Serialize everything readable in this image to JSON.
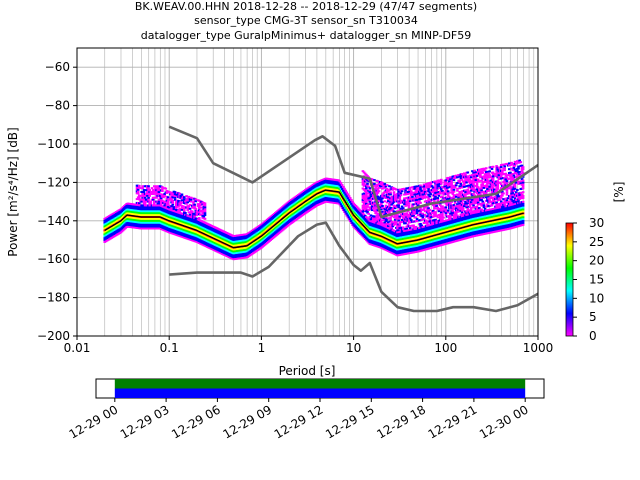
{
  "chart_data": [
    {
      "type": "scatter",
      "title_lines": [
        "BK.WEAV.00.HHN   2018-12-28 -- 2018-12-29  (47/47 segments)",
        "sensor_type CMG-3T sensor_sn T310034",
        "datalogger_type GuralpMinimus+ datalogger_sn MINP-DF59"
      ],
      "xlabel": "Period [s]",
      "ylabel": "Power [m²/s⁴/Hz] [dB]",
      "xscale": "log",
      "xlim": [
        0.01,
        1000
      ],
      "ylim": [
        -200,
        -50
      ],
      "x_ticks": [
        0.01,
        0.1,
        1,
        10,
        100,
        1000
      ],
      "x_tick_labels": [
        "0.01",
        "0.1",
        "1",
        "10",
        "100",
        "1000"
      ],
      "y_ticks": [
        -60,
        -80,
        -100,
        -120,
        -140,
        -160,
        -180,
        -200
      ],
      "y_tick_labels": [
        "−60",
        "−80",
        "−100",
        "−120",
        "−140",
        "−160",
        "−180",
        "−200"
      ],
      "grid": true,
      "colorbar": {
        "label": "[%]",
        "range": [
          0,
          30
        ],
        "ticks": [
          0,
          5,
          10,
          15,
          20,
          25,
          30
        ],
        "tick_labels": [
          "0",
          "5",
          "10",
          "15",
          "20",
          "25",
          "30"
        ],
        "colormap": [
          "#ff00ff",
          "#0000ff",
          "#00ffff",
          "#00ff00",
          "#ffff00",
          "#ff0000"
        ]
      },
      "series": [
        {
          "color": "#666666",
          "points": [
            [
              0.1,
              -91
            ],
            [
              0.2,
              -97
            ],
            [
              0.3,
              -110
            ],
            [
              0.8,
              -120
            ],
            [
              3.8,
              -98
            ],
            [
              4.6,
              -96
            ],
            [
              6.3,
              -101
            ],
            [
              8,
              -115
            ],
            [
              15,
              -118
            ],
            [
              20,
              -138
            ],
            [
              70,
              -131
            ],
            [
              350,
              -126
            ],
            [
              1000,
              -111
            ]
          ]
        },
        {
          "color": "#666666",
          "points": [
            [
              0.1,
              -168
            ],
            [
              0.2,
              -167
            ],
            [
              0.6,
              -167
            ],
            [
              0.8,
              -169
            ],
            [
              1.2,
              -164
            ],
            [
              2.5,
              -148
            ],
            [
              4,
              -142
            ],
            [
              5,
              -141
            ],
            [
              7,
              -153
            ],
            [
              10,
              -163
            ],
            [
              12,
              -166
            ],
            [
              15,
              -162
            ],
            [
              20,
              -177
            ],
            [
              30,
              -185
            ],
            [
              45,
              -187
            ],
            [
              80,
              -187
            ],
            [
              120,
              -185
            ],
            [
              200,
              -185
            ],
            [
              350,
              -187
            ],
            [
              600,
              -184
            ],
            [
              1000,
              -178
            ]
          ]
        },
        {
          "color": "#000000",
          "points": [
            [
              0.02,
              -145
            ],
            [
              0.03,
              -140
            ],
            [
              0.035,
              -137
            ],
            [
              0.05,
              -138
            ],
            [
              0.08,
              -138
            ],
            [
              0.1,
              -140
            ],
            [
              0.2,
              -145
            ],
            [
              0.3,
              -149
            ],
            [
              0.5,
              -154
            ],
            [
              0.7,
              -153
            ],
            [
              1,
              -148
            ],
            [
              2,
              -136
            ],
            [
              3,
              -130
            ],
            [
              4,
              -126
            ],
            [
              5,
              -124
            ],
            [
              7,
              -125
            ],
            [
              10,
              -137
            ],
            [
              15,
              -146
            ],
            [
              20,
              -148
            ],
            [
              30,
              -152
            ],
            [
              50,
              -150
            ],
            [
              100,
              -146
            ],
            [
              200,
              -142
            ],
            [
              500,
              -138
            ],
            [
              700,
              -136
            ]
          ]
        }
      ]
    },
    {
      "type": "bar",
      "x_ticks": [
        "12-29 00",
        "12-29 03",
        "12-29 06",
        "12-29 09",
        "12-29 12",
        "12-29 15",
        "12-29 18",
        "12-29 21",
        "12-30 00"
      ],
      "xlim_hours": [
        -1.1,
        25.1
      ],
      "bands": [
        {
          "color": "#008000",
          "start_hour": 0,
          "end_hour": 24
        },
        {
          "color": "#0000ff",
          "start_hour": 0,
          "end_hour": 24
        }
      ]
    }
  ]
}
